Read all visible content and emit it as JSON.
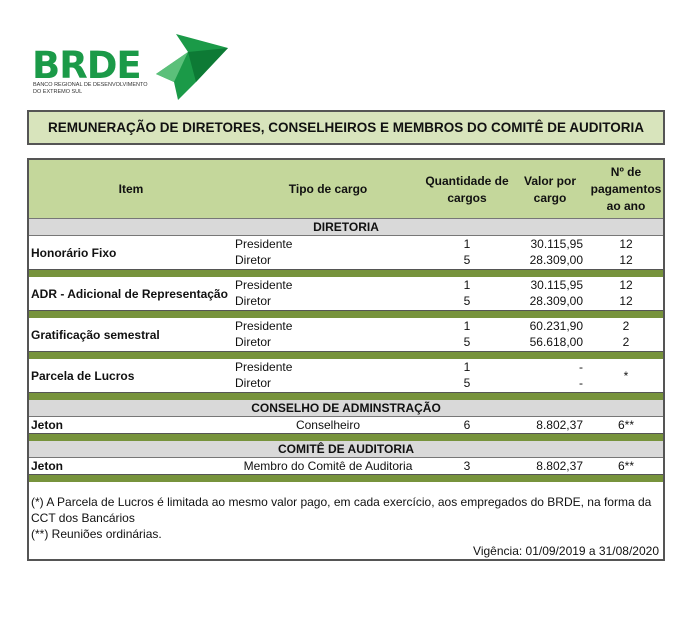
{
  "logo": {
    "name": "BRDE",
    "subtitle": "BANCO REGIONAL DE DESENVOLVIMENTO DO EXTREMO SUL",
    "color": "#1b9a48"
  },
  "title": "REMUNERAÇÃO DE DIRETORES, CONSELHEIROS E MEMBROS DO COMITÊ DE AUDITORIA",
  "headers": {
    "item": "Item",
    "tipo": "Tipo de cargo",
    "qtd": "Quantidade de cargos",
    "valor": "Valor por cargo",
    "pag": "Nº de pagamentos ao ano"
  },
  "sections": [
    {
      "name": "DIRETORIA",
      "groups": [
        {
          "item": "Honorário Fixo",
          "rows": [
            {
              "tipo": "Presidente",
              "qtd": "1",
              "valor": "30.115,95",
              "pag": "12"
            },
            {
              "tipo": "Diretor",
              "qtd": "5",
              "valor": "28.309,00",
              "pag": "12"
            }
          ]
        },
        {
          "item": "ADR - Adicional de Representação",
          "rows": [
            {
              "tipo": "Presidente",
              "qtd": "1",
              "valor": "30.115,95",
              "pag": "12"
            },
            {
              "tipo": "Diretor",
              "qtd": "5",
              "valor": "28.309,00",
              "pag": "12"
            }
          ]
        },
        {
          "item": "Gratificação semestral",
          "rows": [
            {
              "tipo": "Presidente",
              "qtd": "1",
              "valor": "60.231,90",
              "pag": "2"
            },
            {
              "tipo": "Diretor",
              "qtd": "5",
              "valor": "56.618,00",
              "pag": "2"
            }
          ]
        },
        {
          "item": "Parcela de Lucros",
          "rows": [
            {
              "tipo": "Presidente",
              "qtd": "1",
              "valor": "-",
              "pag": "*"
            },
            {
              "tipo": "Diretor",
              "qtd": "5",
              "valor": "-",
              "pag": ""
            }
          ]
        }
      ]
    },
    {
      "name": "CONSELHO DE ADMINSTRAÇÃO",
      "groups": [
        {
          "item": "Jeton",
          "rows": [
            {
              "tipo": "Conselheiro",
              "qtd": "6",
              "valor": "8.802,37",
              "pag": "6**"
            }
          ]
        }
      ]
    },
    {
      "name": "COMITÊ DE AUDITORIA",
      "groups": [
        {
          "item": "Jeton",
          "rows": [
            {
              "tipo": "Membro do Comitê de Auditoria",
              "qtd": "3",
              "valor": "8.802,37",
              "pag": "6**"
            }
          ]
        }
      ]
    }
  ],
  "notes": [
    "(*) A Parcela de Lucros é limitada ao mesmo valor pago, em cada exercício, aos empregados do BRDE, na forma da CCT dos Bancários",
    "(**) Reuniões ordinárias."
  ],
  "vigencia": "Vigência: 01/09/2019 a 31/08/2020"
}
